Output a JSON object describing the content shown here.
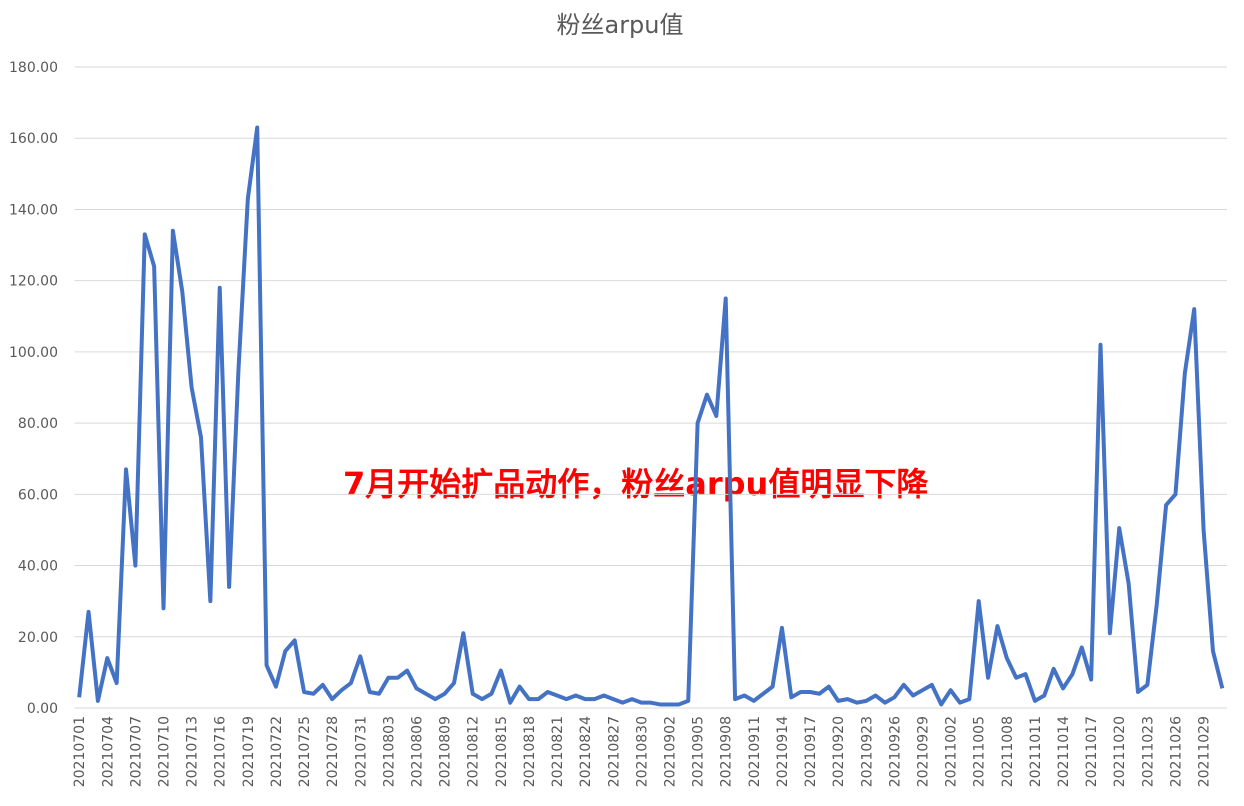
{
  "chart_data": {
    "type": "line",
    "title": "粉丝arpu值",
    "annotation": "7月开始扩品动作，粉丝arpu值明显下降",
    "categories": [
      "20210701",
      null,
      null,
      "20210704",
      null,
      null,
      "20210707",
      null,
      null,
      "20210710",
      null,
      null,
      "20210713",
      null,
      null,
      "20210716",
      null,
      null,
      "20210719",
      null,
      null,
      "20210722",
      null,
      null,
      "20210725",
      null,
      null,
      "20210728",
      null,
      null,
      "20210731",
      null,
      null,
      "20210803",
      null,
      null,
      "20210806",
      null,
      null,
      "20210809",
      null,
      null,
      "20210812",
      null,
      null,
      "20210815",
      null,
      null,
      "20210818",
      null,
      null,
      "20210821",
      null,
      null,
      "20210824",
      null,
      null,
      "20210827",
      null,
      null,
      "20210830",
      null,
      null,
      "20210902",
      null,
      null,
      "20210905",
      null,
      null,
      "20210908",
      null,
      null,
      "20210911",
      null,
      null,
      "20210914",
      null,
      null,
      "20210917",
      null,
      null,
      "20210920",
      null,
      null,
      "20210923",
      null,
      null,
      "20210926",
      null,
      null,
      "20210929",
      null,
      null,
      "20211002",
      null,
      null,
      "20211005",
      null,
      null,
      "20211008",
      null,
      null,
      "20211011",
      null,
      null,
      "20211014",
      null,
      null,
      "20211017",
      null,
      null,
      "20211020",
      null,
      null,
      "20211023",
      null,
      null,
      "20211026",
      null,
      null,
      "20211029",
      null,
      null
    ],
    "series": [
      {
        "name": "粉丝arpu值",
        "color": "#4472c4",
        "values": [
          3,
          27,
          2,
          14,
          7,
          67,
          40,
          133,
          124,
          28,
          134,
          117,
          90,
          76,
          30,
          118,
          34,
          95,
          143,
          163,
          12,
          6,
          16,
          19,
          4.5,
          4,
          6.5,
          2.5,
          5,
          7,
          14.5,
          4.5,
          4,
          8.5,
          8.5,
          10.5,
          5.5,
          4,
          2.5,
          4,
          7,
          21,
          4,
          2.5,
          4,
          10.5,
          1.5,
          6,
          2.5,
          2.5,
          4.5,
          3.5,
          2.5,
          3.5,
          2.5,
          2.5,
          3.5,
          2.5,
          1.5,
          2.5,
          1.5,
          1.5,
          1,
          1,
          1,
          2,
          80,
          88,
          82,
          115,
          2.5,
          3.5,
          2,
          4,
          6,
          22.5,
          3,
          4.5,
          4.5,
          4,
          6,
          2,
          2.5,
          1.5,
          2,
          3.5,
          1.5,
          3,
          6.5,
          3.5,
          5,
          6.5,
          1,
          5,
          1.5,
          2.5,
          30,
          8.5,
          23,
          14,
          8.5,
          9.5,
          2,
          3.5,
          11,
          5.5,
          9.5,
          17,
          8,
          102,
          21,
          50.5,
          35,
          4.5,
          6.5,
          29,
          57,
          60,
          94,
          112,
          50,
          16,
          5.5
        ]
      }
    ],
    "ylim": [
      0,
      180
    ],
    "yticks": [
      {
        "value": 0,
        "label": "0.00"
      },
      {
        "value": 20,
        "label": "20.00"
      },
      {
        "value": 40,
        "label": "40.00"
      },
      {
        "value": 60,
        "label": "60.00"
      },
      {
        "value": 80,
        "label": "80.00"
      },
      {
        "value": 100,
        "label": "100.00"
      },
      {
        "value": 120,
        "label": "120.00"
      },
      {
        "value": 140,
        "label": "140.00"
      },
      {
        "value": 160,
        "label": "160.00"
      },
      {
        "value": 180,
        "label": "180.00"
      }
    ],
    "grid": true
  }
}
